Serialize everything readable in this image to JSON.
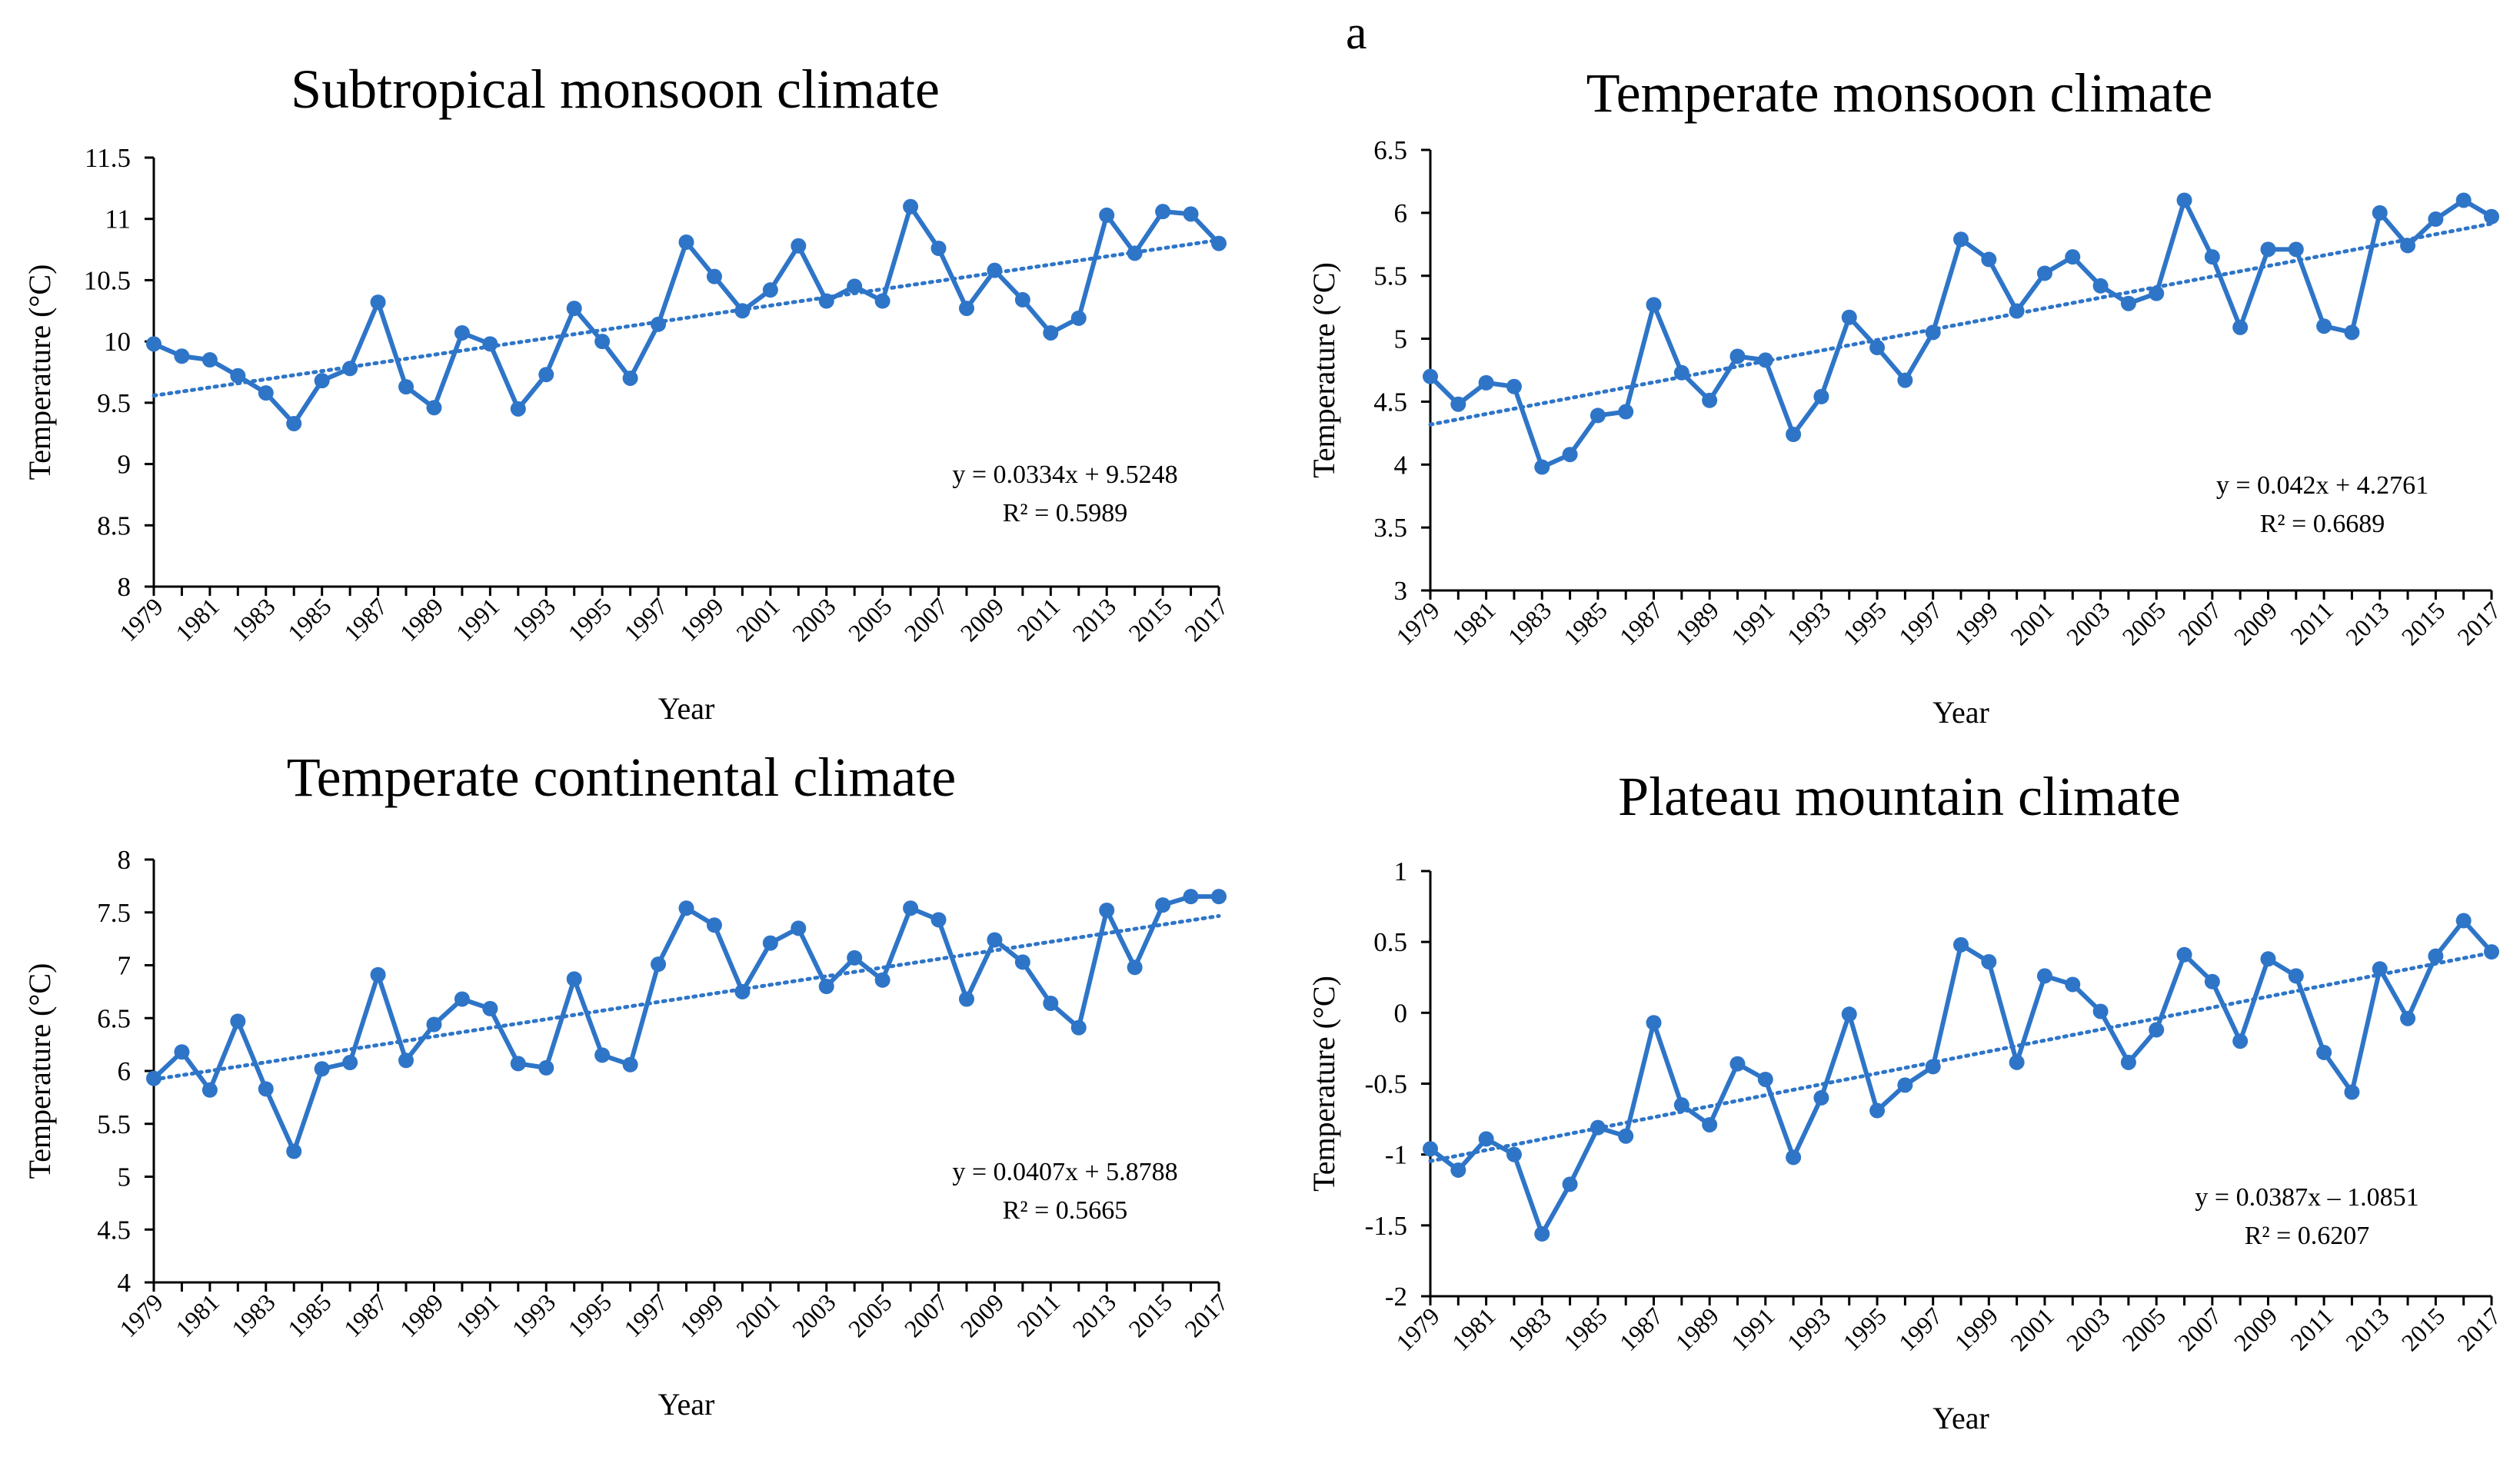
{
  "figure": {
    "panel_label": "a",
    "colors": {
      "series": "#2E75C8",
      "trend": "#2E75C8",
      "axis": "#000000"
    }
  },
  "chart_data": [
    {
      "type": "line",
      "title": "Subtropical monsoon climate",
      "xlabel": "Year",
      "ylabel": "Temperature (°C)",
      "ylim": [
        8,
        11.5
      ],
      "yticks": [
        8,
        8.5,
        9,
        9.5,
        10,
        10.5,
        11,
        11.5
      ],
      "ytick_labels": [
        "8",
        "8.5",
        "9",
        "9.5",
        "10",
        "10.5",
        "11",
        "11.5"
      ],
      "x": [
        1979,
        1980,
        1981,
        1982,
        1983,
        1984,
        1985,
        1986,
        1987,
        1988,
        1989,
        1990,
        1991,
        1992,
        1993,
        1994,
        1995,
        1996,
        1997,
        1998,
        1999,
        2000,
        2001,
        2002,
        2003,
        2004,
        2005,
        2006,
        2007,
        2008,
        2009,
        2010,
        2011,
        2012,
        2013,
        2014,
        2015,
        2016,
        2017
      ],
      "xtick_labels": [
        "1979",
        "1981",
        "1983",
        "1985",
        "1987",
        "1989",
        "1991",
        "1993",
        "1995",
        "1997",
        "1999",
        "2001",
        "2003",
        "2005",
        "2007",
        "2009",
        "2011",
        "2013",
        "2015",
        "2017"
      ],
      "values": [
        9.98,
        9.88,
        9.85,
        9.72,
        9.58,
        9.33,
        9.68,
        9.78,
        10.32,
        9.63,
        9.46,
        10.07,
        9.98,
        9.45,
        9.73,
        10.27,
        10.0,
        9.7,
        10.14,
        10.81,
        10.53,
        10.25,
        10.42,
        10.78,
        10.33,
        10.45,
        10.33,
        11.1,
        10.76,
        10.27,
        10.58,
        10.34,
        10.07,
        10.19,
        11.03,
        10.72,
        11.06,
        11.04,
        10.8
      ],
      "trend": {
        "slope": 0.0334,
        "intercept": 9.5248
      },
      "equation": "y = 0.0334x + 9.5248",
      "r2": "R² = 0.5989"
    },
    {
      "type": "line",
      "title": "Temperate monsoon climate",
      "xlabel": "Year",
      "ylabel": "Temperature (°C)",
      "ylim": [
        3,
        6.5
      ],
      "yticks": [
        3,
        3.5,
        4,
        4.5,
        5,
        5.5,
        6,
        6.5
      ],
      "ytick_labels": [
        "3",
        "3.5",
        "4",
        "4.5",
        "5",
        "5.5",
        "6",
        "6.5"
      ],
      "x": [
        1979,
        1980,
        1981,
        1982,
        1983,
        1984,
        1985,
        1986,
        1987,
        1988,
        1989,
        1990,
        1991,
        1992,
        1993,
        1994,
        1995,
        1996,
        1997,
        1998,
        1999,
        2000,
        2001,
        2002,
        2003,
        2004,
        2005,
        2006,
        2007,
        2008,
        2009,
        2010,
        2011,
        2012,
        2013,
        2014,
        2015,
        2016,
        2017
      ],
      "xtick_labels": [
        "1979",
        "1981",
        "1983",
        "1985",
        "1987",
        "1989",
        "1991",
        "1993",
        "1995",
        "1997",
        "1999",
        "2001",
        "2003",
        "2005",
        "2007",
        "2009",
        "2011",
        "2013",
        "2015",
        "2017"
      ],
      "values": [
        4.7,
        4.48,
        4.65,
        4.62,
        3.98,
        4.08,
        4.39,
        4.42,
        5.27,
        4.73,
        4.51,
        4.86,
        4.83,
        4.24,
        4.54,
        5.17,
        4.93,
        4.67,
        5.05,
        5.79,
        5.63,
        5.22,
        5.52,
        5.65,
        5.42,
        5.28,
        5.36,
        6.1,
        5.65,
        5.09,
        5.71,
        5.71,
        5.1,
        5.05,
        6.0,
        5.74,
        5.95,
        6.1,
        5.97
      ],
      "trend": {
        "slope": 0.042,
        "intercept": 4.2761
      },
      "equation": "y = 0.042x + 4.2761",
      "r2": "R² = 0.6689"
    },
    {
      "type": "line",
      "title": "Temperate continental climate",
      "xlabel": "Year",
      "ylabel": "Temperature (°C)",
      "ylim": [
        4,
        8
      ],
      "yticks": [
        4,
        4.5,
        5,
        5.5,
        6,
        6.5,
        7,
        7.5,
        8
      ],
      "ytick_labels": [
        "4",
        "4.5",
        "5",
        "5.5",
        "6",
        "6.5",
        "7",
        "7.5",
        "8"
      ],
      "x": [
        1979,
        1980,
        1981,
        1982,
        1983,
        1984,
        1985,
        1986,
        1987,
        1988,
        1989,
        1990,
        1991,
        1992,
        1993,
        1994,
        1995,
        1996,
        1997,
        1998,
        1999,
        2000,
        2001,
        2002,
        2003,
        2004,
        2005,
        2006,
        2007,
        2008,
        2009,
        2010,
        2011,
        2012,
        2013,
        2014,
        2015,
        2016,
        2017
      ],
      "xtick_labels": [
        "1979",
        "1981",
        "1983",
        "1985",
        "1987",
        "1989",
        "1991",
        "1993",
        "1995",
        "1997",
        "1999",
        "2001",
        "2003",
        "2005",
        "2007",
        "2009",
        "2011",
        "2013",
        "2015",
        "2017"
      ],
      "values": [
        5.93,
        6.18,
        5.82,
        6.47,
        5.83,
        5.24,
        6.02,
        6.08,
        6.91,
        6.1,
        6.44,
        6.68,
        6.59,
        6.07,
        6.03,
        6.87,
        6.15,
        6.06,
        7.01,
        7.54,
        7.38,
        6.75,
        7.21,
        7.35,
        6.8,
        7.07,
        6.86,
        7.54,
        7.43,
        6.68,
        7.24,
        7.03,
        6.64,
        6.41,
        7.52,
        6.98,
        7.57,
        7.65,
        7.65
      ],
      "trend": {
        "slope": 0.0407,
        "intercept": 5.8788
      },
      "equation": "y = 0.0407x + 5.8788",
      "r2": "R² = 0.5665"
    },
    {
      "type": "line",
      "title": "Plateau mountain climate",
      "xlabel": "Year",
      "ylabel": "Temperature (°C)",
      "ylim": [
        -2,
        1
      ],
      "yticks": [
        -2,
        -1.5,
        -1,
        -0.5,
        0,
        0.5,
        1
      ],
      "ytick_labels": [
        "-2",
        "-1.5",
        "-1",
        "-0.5",
        "0",
        "0.5",
        "1"
      ],
      "x": [
        1979,
        1980,
        1981,
        1982,
        1983,
        1984,
        1985,
        1986,
        1987,
        1988,
        1989,
        1990,
        1991,
        1992,
        1993,
        1994,
        1995,
        1996,
        1997,
        1998,
        1999,
        2000,
        2001,
        2002,
        2003,
        2004,
        2005,
        2006,
        2007,
        2008,
        2009,
        2010,
        2011,
        2012,
        2013,
        2014,
        2015,
        2016,
        2017
      ],
      "xtick_labels": [
        "1979",
        "1981",
        "1983",
        "1985",
        "1987",
        "1989",
        "1991",
        "1993",
        "1995",
        "1997",
        "1999",
        "2001",
        "2003",
        "2005",
        "2007",
        "2009",
        "2011",
        "2013",
        "2015",
        "2017"
      ],
      "values": [
        -0.96,
        -1.11,
        -0.89,
        -1.0,
        -1.56,
        -1.21,
        -0.81,
        -0.87,
        -0.07,
        -0.65,
        -0.79,
        -0.36,
        -0.47,
        -1.02,
        -0.6,
        -0.01,
        -0.69,
        -0.51,
        -0.38,
        0.48,
        0.36,
        -0.35,
        0.26,
        0.2,
        0.01,
        -0.35,
        -0.12,
        0.41,
        0.22,
        -0.2,
        0.38,
        0.26,
        -0.28,
        -0.56,
        0.31,
        -0.04,
        0.4,
        0.65,
        0.43
      ],
      "trend": {
        "slope": 0.0387,
        "intercept": -1.0851
      },
      "equation": "y = 0.0387x – 1.0851",
      "r2": "R² = 0.6207"
    }
  ]
}
